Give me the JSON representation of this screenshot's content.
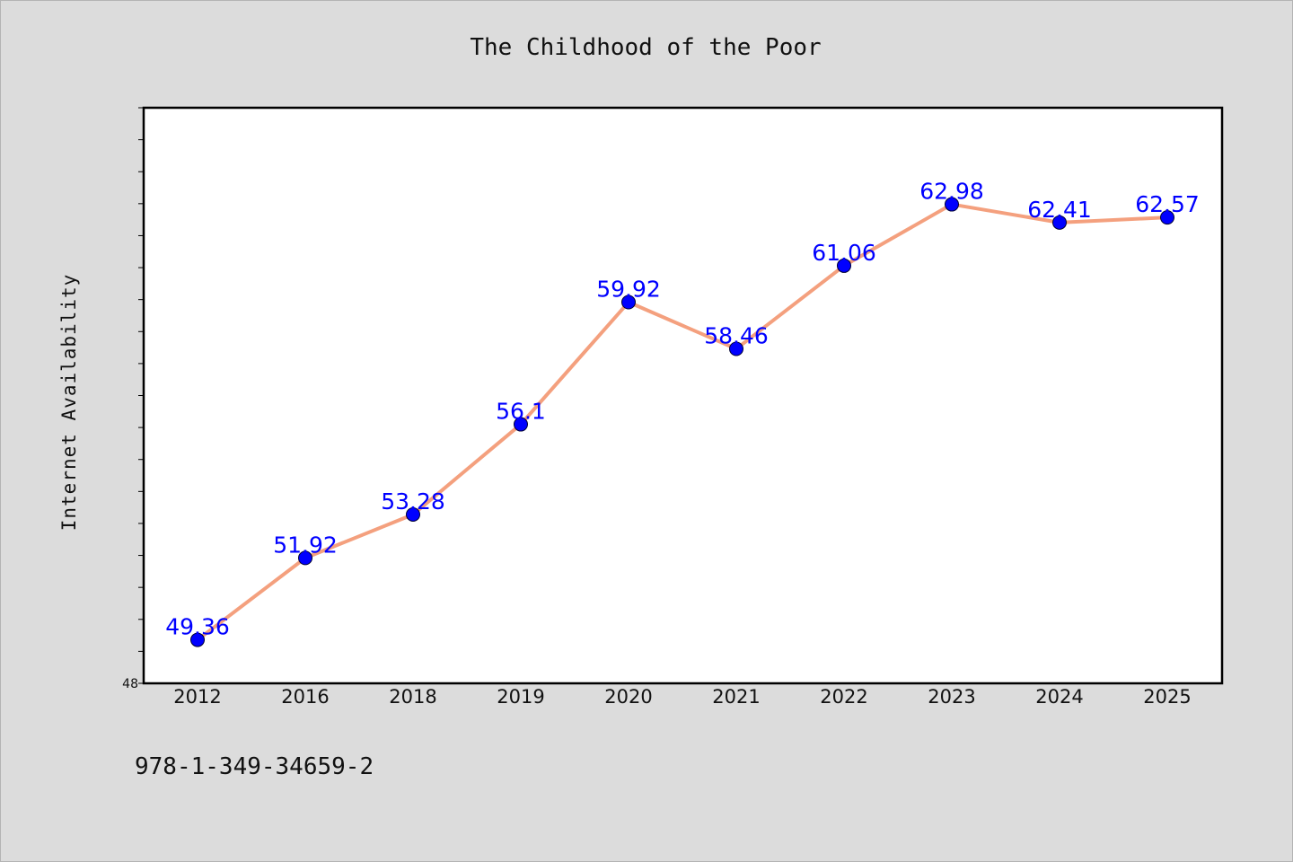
{
  "chart_data": {
    "type": "line",
    "title": "The Childhood of the Poor",
    "xlabel": "",
    "ylabel": "Internet Availability",
    "categories": [
      "2012",
      "2016",
      "2018",
      "2019",
      "2020",
      "2021",
      "2022",
      "2023",
      "2024",
      "2025"
    ],
    "series": [
      {
        "values": [
          49.36,
          51.92,
          53.28,
          56.1,
          59.92,
          58.46,
          61.06,
          62.98,
          62.41,
          62.57
        ],
        "labels": [
          "49.36",
          "51.92",
          "53.28",
          "56.1",
          "59.92",
          "58.46",
          "61.06",
          "62.98",
          "62.41",
          "62.57"
        ],
        "line_color": "#f4a07e",
        "marker_color": "#0000ff"
      }
    ],
    "ylim": [
      48,
      66
    ],
    "y_tick_labels": [
      "48"
    ],
    "grid": false,
    "legend": "none"
  },
  "footnote": "978-1-349-34659-2",
  "colors": {
    "background": "#dcdcdc",
    "plot_background": "#ffffff",
    "line": "#f4a07e",
    "marker": "#0000ff",
    "data_label": "#0000ff"
  }
}
